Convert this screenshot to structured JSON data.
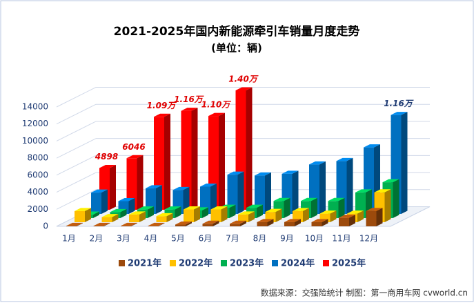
{
  "chart_data": {
    "type": "bar3d",
    "title": "2021-2025年国内新能源牵引车销量月度走势",
    "subtitle": "(单位：辆)",
    "source": "数据来源：交强险统计 制图：第一商用车网 cvworld.cn",
    "categories": [
      "1月",
      "2月",
      "3月",
      "4月",
      "5月",
      "6月",
      "7月",
      "8月",
      "9月",
      "10月",
      "11月",
      "12月"
    ],
    "ylim": [
      0,
      14000
    ],
    "yticks": [
      0,
      2000,
      4000,
      6000,
      8000,
      10000,
      12000,
      14000
    ],
    "series": [
      {
        "name": "2021年",
        "color": "#9c4a0c",
        "values": [
          50,
          50,
          50,
          50,
          200,
          300,
          300,
          500,
          500,
          500,
          1000,
          1800
        ]
      },
      {
        "name": "2022年",
        "color": "#ffc000",
        "values": [
          1300,
          600,
          900,
          700,
          1500,
          1500,
          900,
          1200,
          1300,
          1000,
          1000,
          3500
        ]
      },
      {
        "name": "2023年",
        "color": "#00b050",
        "values": [
          400,
          700,
          1000,
          1000,
          900,
          1200,
          1200,
          2000,
          2000,
          2000,
          3000,
          4200
        ]
      },
      {
        "name": "2024年",
        "color": "#0070c0",
        "values": [
          2500,
          1500,
          3000,
          2800,
          3200,
          4600,
          4500,
          4700,
          5800,
          6200,
          7800,
          11600
        ],
        "value_labels": [
          null,
          null,
          null,
          null,
          null,
          null,
          null,
          null,
          null,
          null,
          null,
          "1.16万"
        ]
      },
      {
        "name": "2025年",
        "color": "#ff0000",
        "values": [
          4898,
          6046,
          10900,
          11600,
          11000,
          14000,
          null,
          null,
          null,
          null,
          null,
          null
        ],
        "value_labels": [
          "4898",
          "6046",
          "1.09万",
          "1.16万",
          "1.10万",
          "1.40万",
          null,
          null,
          null,
          null,
          null,
          null
        ]
      }
    ]
  }
}
